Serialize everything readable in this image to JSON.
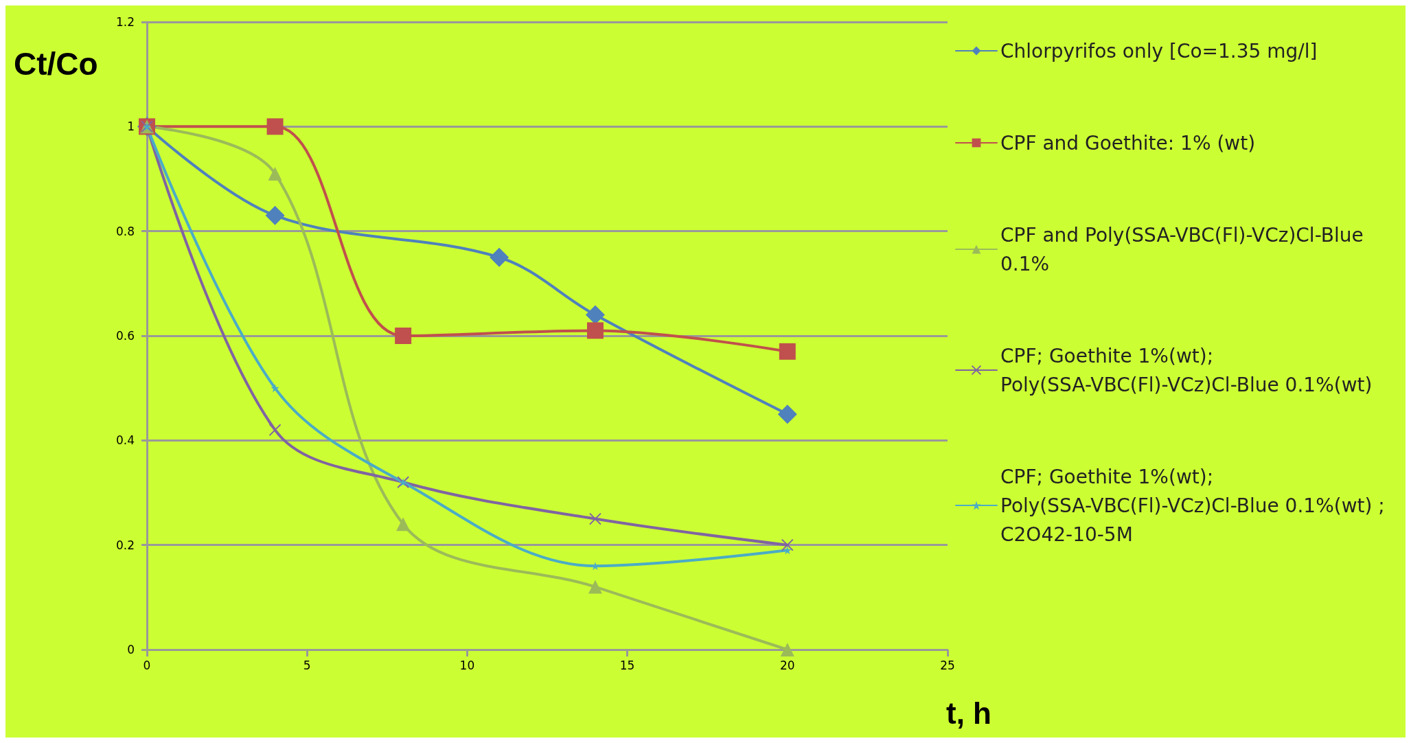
{
  "chart_data": {
    "type": "line",
    "xlabel": "t, h",
    "ylabel": "Ct/Co",
    "xlim": [
      0,
      25
    ],
    "xticks": [
      0,
      5,
      10,
      15,
      20,
      25
    ],
    "ylim": [
      0,
      1.2
    ],
    "yticks": [
      0,
      0.2,
      0.4,
      0.6,
      0.8,
      1,
      1.2
    ],
    "grid": "y",
    "legend": "right",
    "series": [
      {
        "name": "Chlorpyrifos only [Co=1.35 mg/l]",
        "color": "#4f81bd",
        "marker": "diamond",
        "x": [
          0,
          4,
          11,
          14,
          20
        ],
        "values": [
          1,
          0.83,
          0.75,
          0.64,
          0.45
        ]
      },
      {
        "name": "CPF and Goethite: 1% (wt)",
        "color": "#c0504d",
        "marker": "square",
        "x": [
          0,
          4,
          8,
          14,
          20
        ],
        "values": [
          1,
          1,
          0.6,
          0.61,
          0.57
        ]
      },
      {
        "name": "CPF and Poly(SSA-VBC(Fl)-VCz)Cl-Blue 0.1%",
        "color": "#9bbb59",
        "marker": "triangle",
        "x": [
          0,
          4,
          8,
          14,
          20
        ],
        "values": [
          1,
          0.91,
          0.24,
          0.12,
          0
        ]
      },
      {
        "name": "CPF; Goethite 1%(wt); Poly(SSA-VBC(Fl)-VCz)Cl-Blue 0.1%(wt)",
        "color": "#8064a2",
        "marker": "cross",
        "x": [
          0,
          4,
          8,
          14,
          20
        ],
        "values": [
          1,
          0.42,
          0.32,
          0.25,
          0.2
        ]
      },
      {
        "name": "CPF; Goethite 1%(wt); Poly(SSA-VBC(Fl)-VCz)Cl-Blue 0.1%(wt) ; C2O42-10-5M",
        "color": "#4bacc6",
        "marker": "star",
        "x": [
          0,
          4,
          8,
          14,
          20
        ],
        "values": [
          1,
          0.5,
          0.32,
          0.16,
          0.19
        ]
      }
    ]
  }
}
